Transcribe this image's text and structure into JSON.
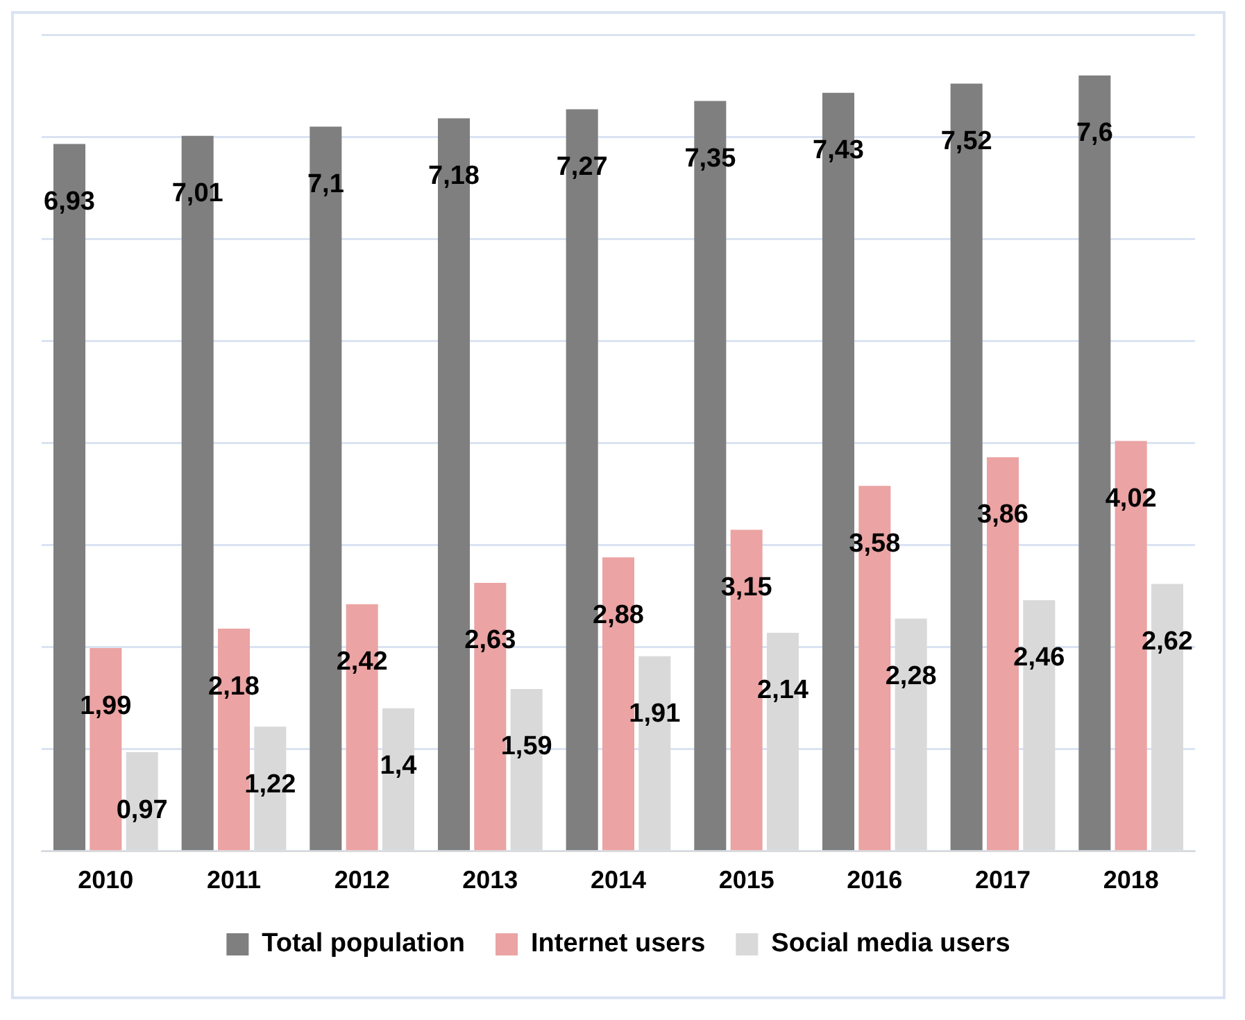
{
  "chart_data": {
    "type": "bar",
    "categories": [
      "2010",
      "2011",
      "2012",
      "2013",
      "2014",
      "2015",
      "2016",
      "2017",
      "2018"
    ],
    "series": [
      {
        "name": "Total population",
        "color": "#7f7f7f",
        "values": [
          6.93,
          7.01,
          7.1,
          7.18,
          7.27,
          7.35,
          7.43,
          7.52,
          7.6
        ],
        "value_labels": [
          "6,93",
          "7,01",
          "7,1",
          "7,18",
          "7,27",
          "7,35",
          "7,43",
          "7,52",
          "7,6"
        ]
      },
      {
        "name": "Internet users",
        "color": "#eba3a3",
        "values": [
          1.99,
          2.18,
          2.42,
          2.63,
          2.88,
          3.15,
          3.58,
          3.86,
          4.02
        ],
        "value_labels": [
          "1,99",
          "2,18",
          "2,42",
          "2,63",
          "2,88",
          "3,15",
          "3,58",
          "3,86",
          "4,02"
        ]
      },
      {
        "name": "Social media users",
        "color": "#d9d9d9",
        "values": [
          0.97,
          1.22,
          1.4,
          1.59,
          1.91,
          2.14,
          2.28,
          2.46,
          2.62
        ],
        "value_labels": [
          "0,97",
          "1,22",
          "1,4",
          "1,59",
          "1,91",
          "2,14",
          "2,28",
          "2,46",
          "2,62"
        ]
      }
    ],
    "grid": "y",
    "legend": "bottom",
    "tick_labels": "x"
  }
}
